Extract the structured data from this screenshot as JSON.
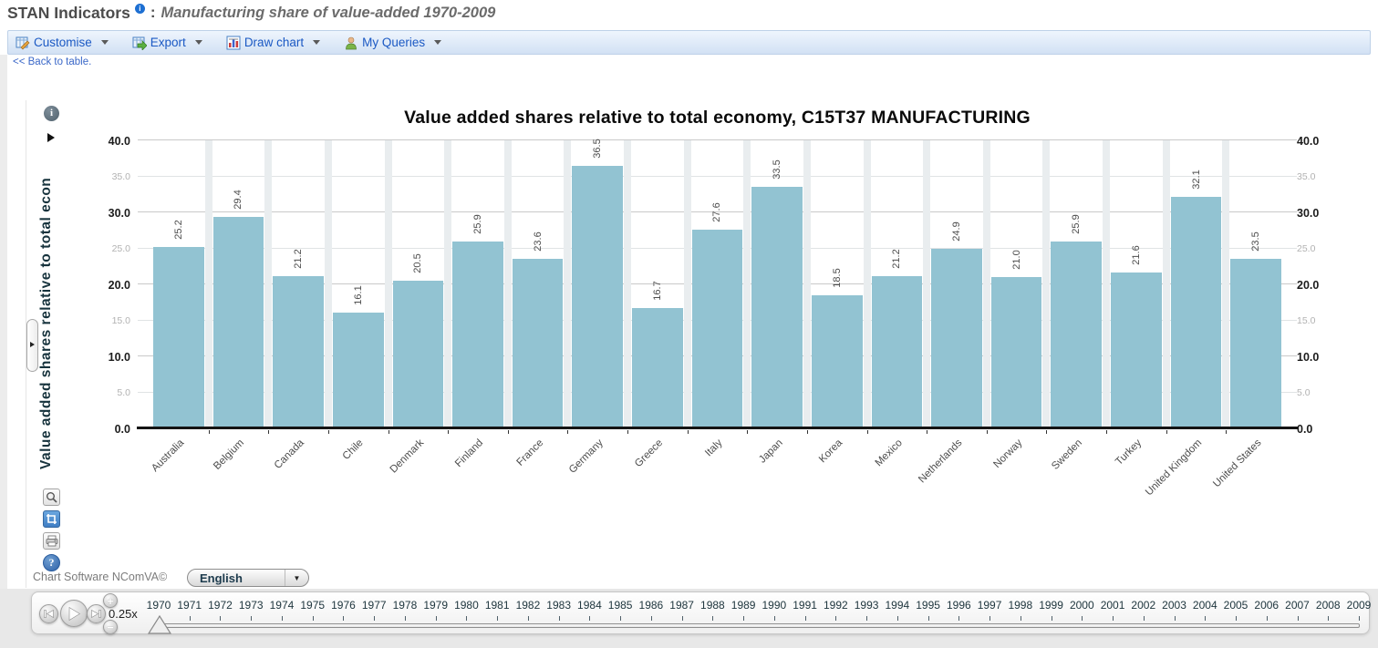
{
  "header": {
    "title": "STAN Indicators",
    "separator": ":",
    "subtitle": "Manufacturing share of value-added 1970-2009"
  },
  "toolbar": {
    "items": [
      {
        "id": "customise",
        "label": "Customise",
        "icon": "customise-icon"
      },
      {
        "id": "export",
        "label": "Export",
        "icon": "export-icon"
      },
      {
        "id": "draw-chart",
        "label": "Draw chart",
        "icon": "draw-chart-icon"
      },
      {
        "id": "my-queries",
        "label": "My Queries",
        "icon": "my-queries-icon"
      }
    ]
  },
  "nav": {
    "back_link": "<< Back to table."
  },
  "chart_data": {
    "type": "bar",
    "title": "Value added shares relative to total economy, C15T37 MANUFACTURING",
    "ylabel": "Value added shares relative to total econ",
    "ylim": [
      0,
      40
    ],
    "ytick_interval": 5,
    "ytick_major_interval": 10,
    "grid": true,
    "legend": false,
    "axis_sides": "both",
    "bar_color": "#92c3d2",
    "categories": [
      "Australia",
      "Belgium",
      "Canada",
      "Chile",
      "Denmark",
      "Finland",
      "France",
      "Germany",
      "Greece",
      "Italy",
      "Japan",
      "Korea",
      "Mexico",
      "Netherlands",
      "Norway",
      "Sweden",
      "Turkey",
      "United Kingdom",
      "United States"
    ],
    "values": [
      25.2,
      29.4,
      21.2,
      16.1,
      20.5,
      25.9,
      23.6,
      36.5,
      16.7,
      27.6,
      33.5,
      18.5,
      21.2,
      24.9,
      21.0,
      25.9,
      21.6,
      32.1,
      23.5
    ]
  },
  "side_tools": {
    "icons": [
      "info-icon",
      "expand-arrow-icon",
      "magnifier-icon",
      "crop-icon",
      "print-icon",
      "help-icon"
    ]
  },
  "footer": {
    "credit": "Chart Software NComVA©",
    "language_selector": {
      "value": "English"
    }
  },
  "timeline": {
    "speed_label": "0.25x",
    "years_start": 1970,
    "years_end": 2009,
    "selected_year": 1970
  }
}
